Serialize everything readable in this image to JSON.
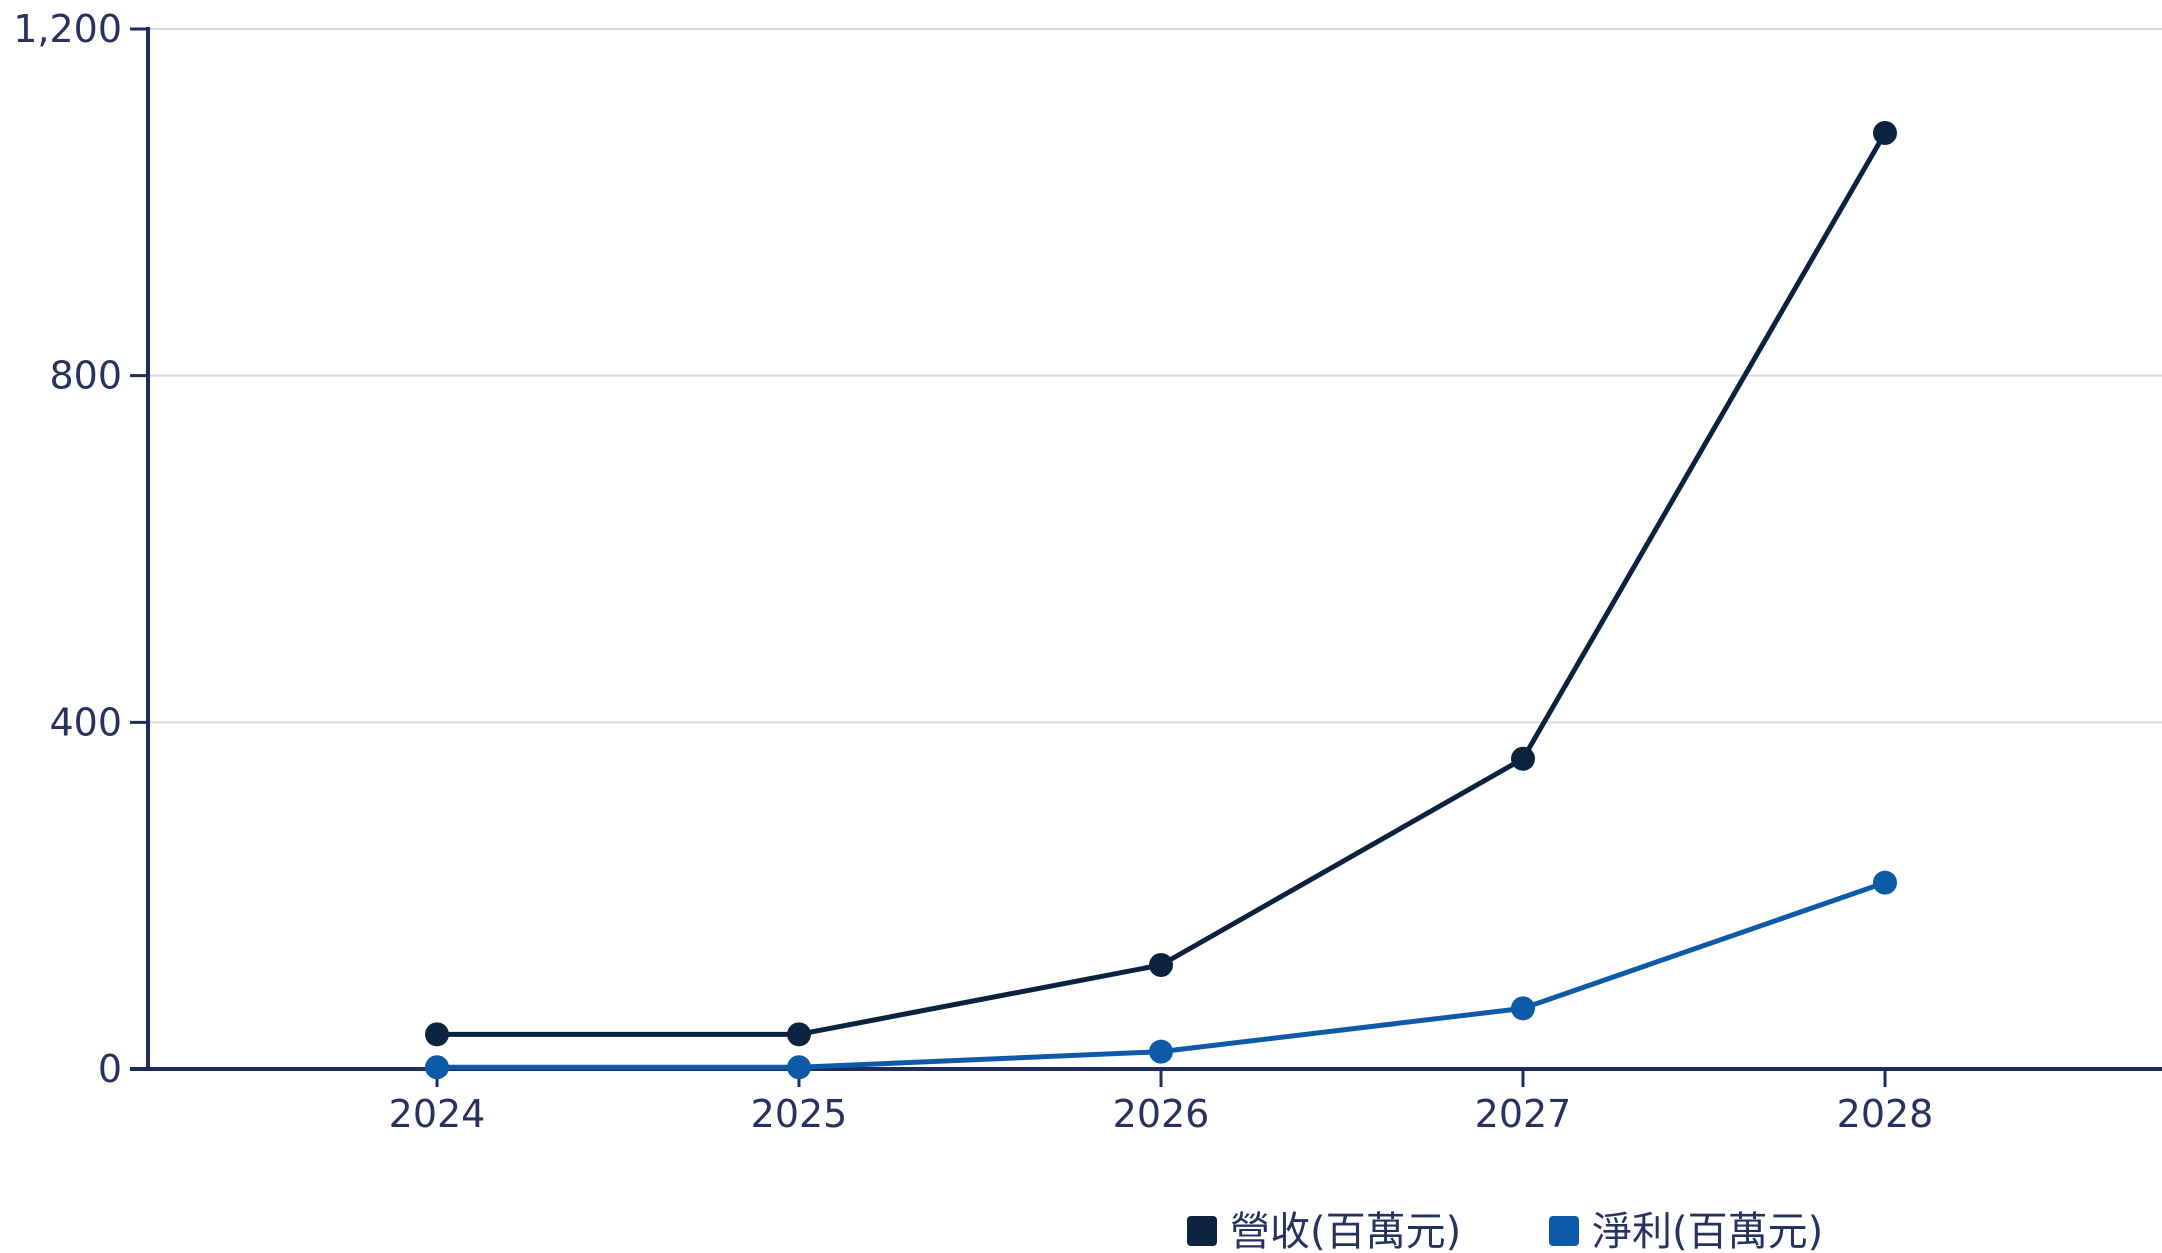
{
  "chart_data": {
    "type": "line",
    "title": "",
    "xlabel": "",
    "ylabel": "",
    "categories": [
      "2024",
      "2025",
      "2026",
      "2027",
      "2028"
    ],
    "ylim": [
      0,
      1200
    ],
    "yticks": [
      0,
      400,
      800,
      1200
    ],
    "ytick_labels": [
      "0",
      "400",
      "800",
      "1,200"
    ],
    "grid": "horizontal",
    "legend": "bottom-right",
    "series": [
      {
        "name": "營收(百萬元)",
        "color": "#0c2340",
        "values": [
          40,
          40,
          120,
          358,
          1080
        ]
      },
      {
        "name": "淨利(百萬元)",
        "color": "#0f5aa8",
        "values": [
          2,
          2,
          20,
          70,
          215
        ]
      }
    ],
    "colors": {
      "axis": "#1f2c5c",
      "grid": "#d6d8e5",
      "text": "#27325e"
    }
  }
}
